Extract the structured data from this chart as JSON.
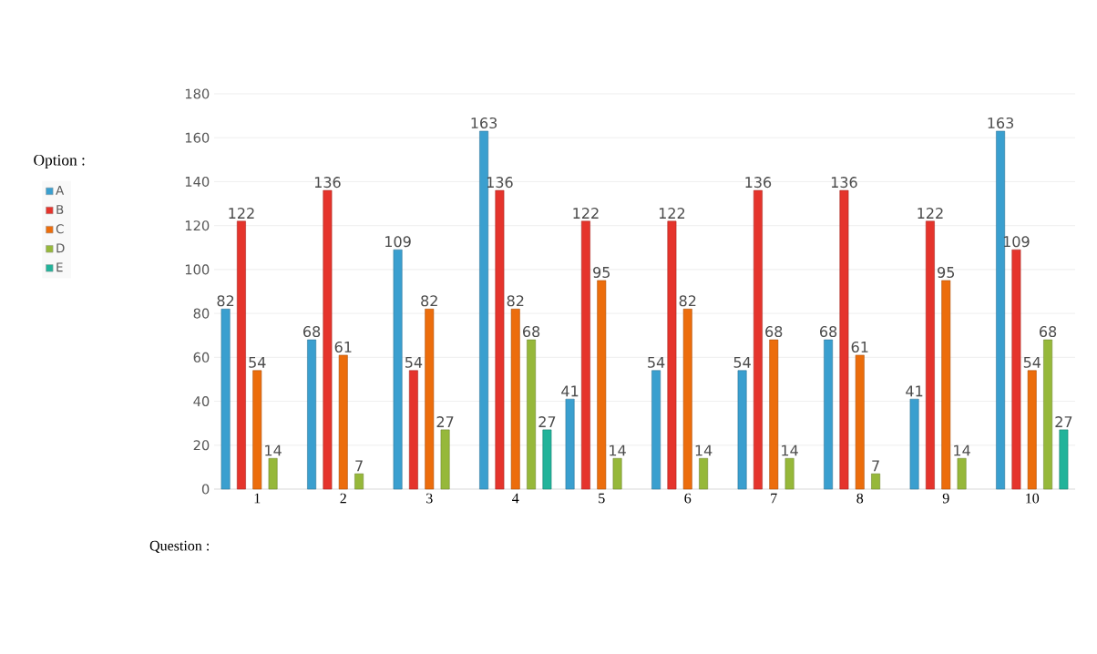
{
  "chart_data": {
    "type": "bar",
    "xlabel": "Question :",
    "legend_title": "Option :",
    "categories": [
      "1",
      "2",
      "3",
      "4",
      "5",
      "6",
      "7",
      "8",
      "9",
      "10"
    ],
    "series": [
      {
        "name": "A",
        "color": "#3a9fcf",
        "values": [
          82,
          68,
          109,
          163,
          41,
          54,
          54,
          68,
          41,
          163
        ]
      },
      {
        "name": "B",
        "color": "#e5342c",
        "values": [
          122,
          136,
          54,
          136,
          122,
          122,
          136,
          136,
          122,
          109
        ]
      },
      {
        "name": "C",
        "color": "#ec6d0c",
        "values": [
          54,
          61,
          82,
          82,
          95,
          82,
          68,
          61,
          95,
          54
        ]
      },
      {
        "name": "D",
        "color": "#96b83a",
        "values": [
          14,
          7,
          27,
          68,
          14,
          14,
          14,
          7,
          14,
          68
        ]
      },
      {
        "name": "E",
        "color": "#22b39a",
        "values": [
          null,
          null,
          null,
          27,
          null,
          null,
          null,
          null,
          null,
          27
        ]
      }
    ],
    "ylim": [
      0,
      180
    ],
    "yticks": [
      0,
      20,
      40,
      60,
      80,
      100,
      120,
      140,
      160,
      180
    ],
    "grid": "y",
    "legend": "left",
    "data_labels": true
  }
}
